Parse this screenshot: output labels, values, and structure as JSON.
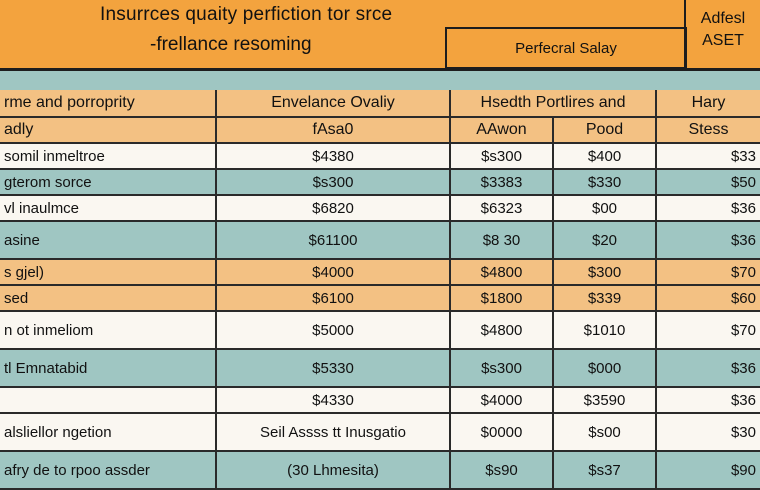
{
  "header": {
    "title": "Insurrces quaity perfiction tor srce",
    "subtitle": "-frellance resoming",
    "box_label": "Perfecral Salay",
    "side_line1": "Adfesl",
    "side_line2": "ASET"
  },
  "table": {
    "head1": {
      "c0": "rme and porroprity",
      "c1": "Envelance Ovaliy",
      "c23": "Hsedth Portlires and",
      "c4": "Hary"
    },
    "head2": {
      "c0": "adly",
      "c1": "fAsa0",
      "c2": "AAwon",
      "c3": "Pood",
      "c4": "Stess"
    },
    "rows": [
      {
        "c0": "somil inmeltroe",
        "c1": "$4380",
        "c2": "$s300",
        "c3": "$400",
        "c4": "$33"
      },
      {
        "c0": "gterom sorce",
        "c1": "$s300",
        "c2": "$3383",
        "c3": "$330",
        "c4": "$50"
      },
      {
        "c0": "vl inaulmce",
        "c1": "$6820",
        "c2": "$6323",
        "c3": "$00",
        "c4": "$36"
      },
      {
        "c0": "asine",
        "c1": "$61100",
        "c2": "$8 30",
        "c3": "$20",
        "c4": "$36"
      },
      {
        "c0": "s gjel)",
        "c1": "$4000",
        "c2": "$4800",
        "c3": "$300",
        "c4": "$70"
      },
      {
        "c0": "sed",
        "c1": "$6100",
        "c2": "$1800",
        "c3": "$339",
        "c4": "$60"
      },
      {
        "c0": "n ot inmeliom",
        "c1": "$5000",
        "c2": "$4800",
        "c3": "$1010",
        "c4": "$70"
      },
      {
        "c0": "tl Emnatabid",
        "c1": "$5330",
        "c2": "$s300",
        "c3": "$000",
        "c4": "$36"
      },
      {
        "c0": "",
        "c1": "$4330",
        "c2": "$4000",
        "c3": "$3590",
        "c4": "$36"
      },
      {
        "c0": "alsliellor ngetion",
        "c1": "Seil Assss tt Inusgatio",
        "c2": "$0000",
        "c3": "$s00",
        "c4": "$30"
      },
      {
        "c0": "afry de to rpoo assder",
        "c1": "(30 Lhmesita)",
        "c2": "$s90",
        "c3": "$s37",
        "c4": "$90"
      }
    ]
  }
}
